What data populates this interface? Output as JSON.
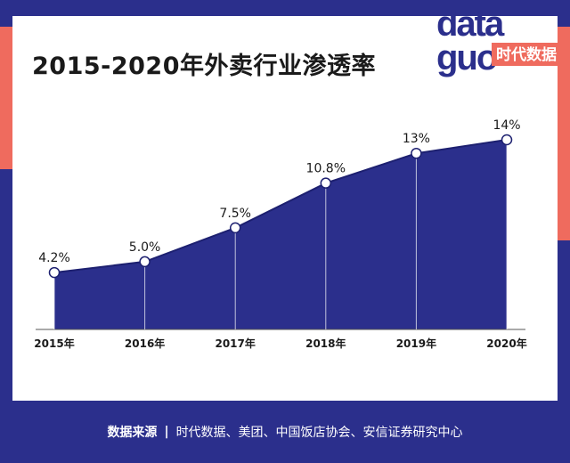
{
  "title": "2015-2020年外卖行业渗透率",
  "logo": {
    "line1": "data",
    "line2": "guo",
    "tagline": "时代数据"
  },
  "footer": {
    "source_label": "数据来源",
    "separator": "|",
    "source_text": "时代数据、美团、中国饭店协会、安信证券研究中心"
  },
  "colors": {
    "area": "#2b2f8c",
    "accent": "#ef6b5e",
    "panel": "#ffffff"
  },
  "chart_data": {
    "type": "area",
    "categories": [
      "2015年",
      "2016年",
      "2017年",
      "2018年",
      "2019年",
      "2020年"
    ],
    "values": [
      4.2,
      5.0,
      7.5,
      10.8,
      13,
      14
    ],
    "labels": [
      "4.2%",
      "5.0%",
      "7.5%",
      "10.8%",
      "13%",
      "14%"
    ],
    "unit": "%",
    "title": "2015-2020年外卖行业渗透率",
    "xlabel": "",
    "ylabel": "",
    "ylim": [
      0,
      14
    ],
    "grid": false,
    "legend": "none"
  }
}
